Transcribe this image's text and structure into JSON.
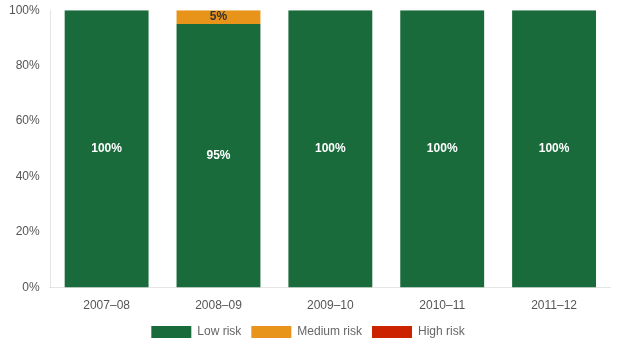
{
  "chart_data": {
    "type": "bar",
    "stacked": true,
    "categories": [
      "2007–08",
      "2008–09",
      "2009–10",
      "2010–11",
      "2011–12"
    ],
    "series": [
      {
        "name": "Low risk",
        "color": "#1a6b3c",
        "values": [
          100,
          95,
          100,
          100,
          100
        ],
        "value_labels": [
          "100%",
          "95%",
          "100%",
          "100%",
          "100%"
        ]
      },
      {
        "name": "Medium risk",
        "color": "#e8941a",
        "values": [
          0,
          5,
          0,
          0,
          0
        ],
        "value_labels": [
          null,
          "5%",
          null,
          null,
          null
        ]
      },
      {
        "name": "High risk",
        "color": "#cc2200",
        "values": [
          0,
          0,
          0,
          0,
          0
        ],
        "value_labels": [
          null,
          null,
          null,
          null,
          null
        ]
      }
    ],
    "ylim": [
      0,
      100
    ],
    "yticks": [
      {
        "value": 0,
        "label": "0%"
      },
      {
        "value": 20,
        "label": "20%"
      },
      {
        "value": 40,
        "label": "40%"
      },
      {
        "value": 60,
        "label": "60%"
      },
      {
        "value": 80,
        "label": "80%"
      },
      {
        "value": 100,
        "label": "100%"
      }
    ],
    "grid": false,
    "legend": "bottom",
    "data_labels": true
  }
}
